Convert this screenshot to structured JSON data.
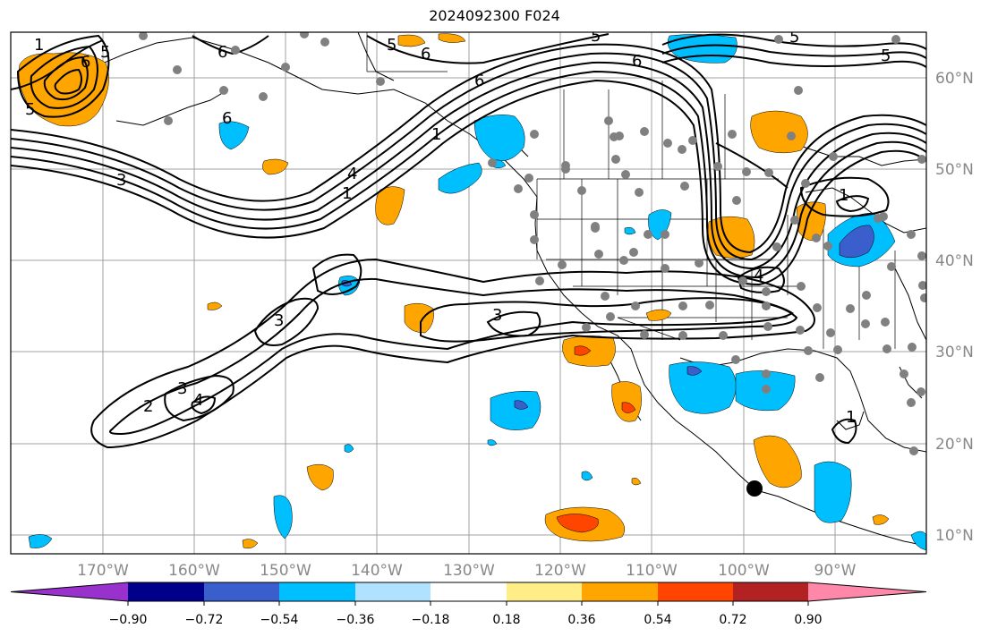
{
  "title": "2024092300 F024",
  "longitude_labels": [
    "170°W",
    "160°W",
    "150°W",
    "140°W",
    "130°W",
    "120°W",
    "110°W",
    "100°W",
    "90°W"
  ],
  "latitude_labels": [
    "60°N",
    "50°N",
    "40°N",
    "30°N",
    "20°N",
    "10°N"
  ],
  "colorbar": {
    "tick_labels": [
      "−0.90",
      "−0.72",
      "−0.54",
      "−0.36",
      "−0.18",
      "0.18",
      "0.36",
      "0.54",
      "0.72",
      "0.90"
    ],
    "colors": [
      "#9932cc",
      "#00008b",
      "#3a5fcd",
      "#00bfff",
      "#b0e2ff",
      "#ffffff",
      "#ffee88",
      "#ffa500",
      "#ff4500",
      "#b22222",
      "#ff88aa"
    ]
  },
  "contour_labels": [
    {
      "text": "1"
    },
    {
      "text": "5"
    },
    {
      "text": "6"
    },
    {
      "text": "6"
    },
    {
      "text": "6"
    },
    {
      "text": "5"
    },
    {
      "text": "6"
    },
    {
      "text": "5"
    },
    {
      "text": "6"
    },
    {
      "text": "5"
    },
    {
      "text": "6"
    },
    {
      "text": "5"
    },
    {
      "text": "5"
    },
    {
      "text": "3"
    },
    {
      "text": "4"
    },
    {
      "text": "1"
    },
    {
      "text": "1"
    },
    {
      "text": "4"
    },
    {
      "text": "3"
    },
    {
      "text": "3"
    },
    {
      "text": "4"
    },
    {
      "text": "3"
    },
    {
      "text": "2"
    },
    {
      "text": "1"
    },
    {
      "text": "1"
    }
  ]
}
